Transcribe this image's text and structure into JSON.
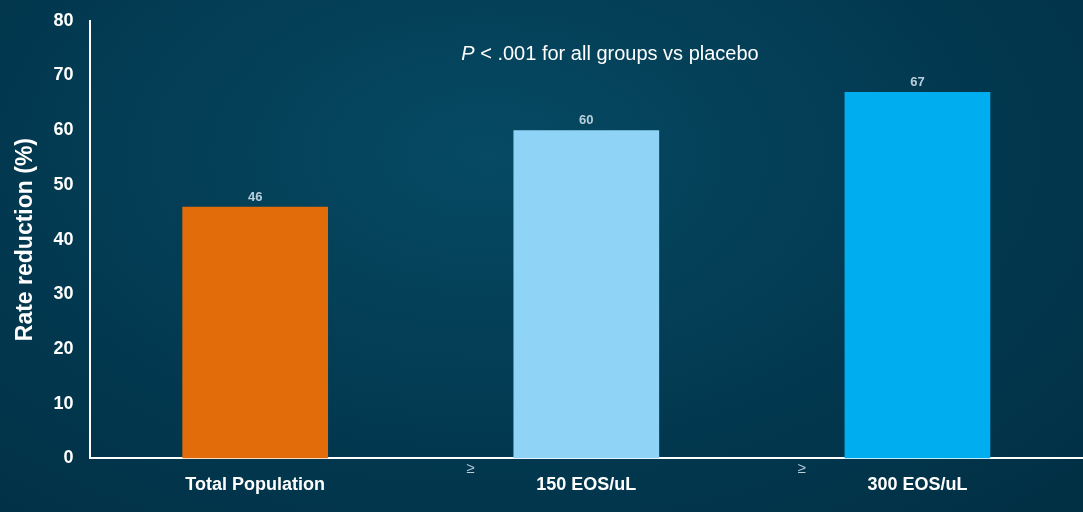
{
  "chart_data": {
    "type": "bar",
    "ylabel": "Rate reduction (%)",
    "categories": [
      "Total Population",
      "150 EOS/uL",
      "300 EOS/uL"
    ],
    "values": [
      46,
      60,
      67
    ],
    "colors": [
      "#e36c0a",
      "#8fd4f7",
      "#00aeef"
    ],
    "ylim": [
      0,
      80
    ],
    "yticks": [
      0,
      10,
      20,
      30,
      40,
      50,
      60,
      70,
      80
    ],
    "data_labels": true,
    "grid": false,
    "legend": false,
    "annotations": [
      "P < .001 for all groups vs placebo",
      "≥",
      "≥"
    ]
  }
}
